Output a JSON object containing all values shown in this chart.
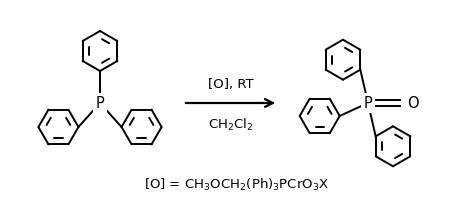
{
  "bg_color": "#ffffff",
  "fig_width": 4.74,
  "fig_height": 2.01,
  "dpi": 100,
  "arrow_text_top": "[O], RT",
  "arrow_text_bottom": "CH$_2$Cl$_2$",
  "bottom_text": "[O] = CH$_3$OCH$_2$(Ph)$_3$PCrO$_3$X",
  "text_color": "#000000",
  "line_color": "#000000",
  "line_width": 1.4,
  "font_size_arrow": 9.5,
  "font_size_bottom": 9.5
}
